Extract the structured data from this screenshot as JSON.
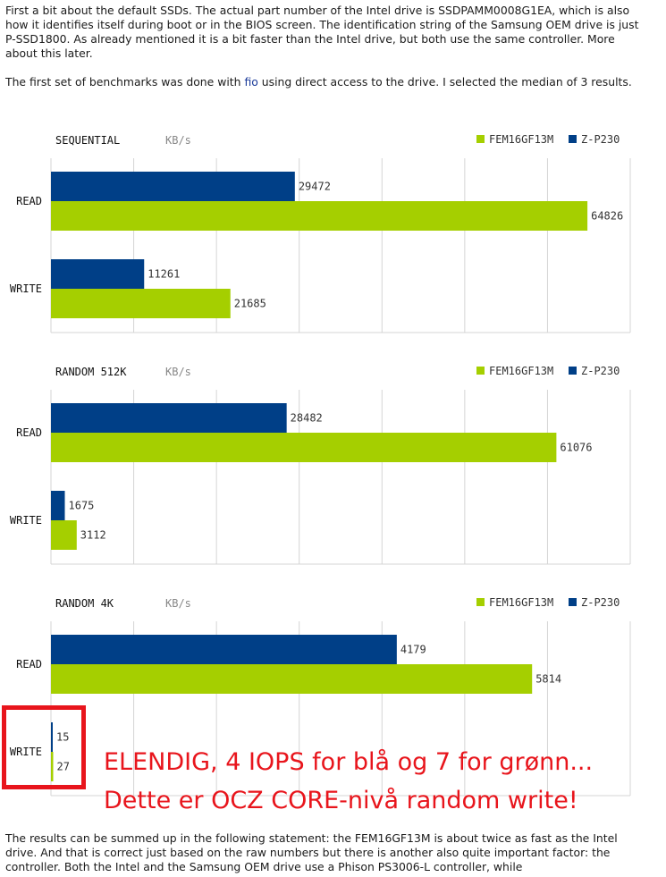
{
  "article": {
    "para1": "First a bit about the default SSDs. The actual part number of the Intel drive is SSDPAMM0008G1EA, which is also how it identifies itself during boot or in the BIOS screen. The identification string of the Samsung OEM drive is just P-SSD1800. As already mentioned it is a bit faster than the Intel drive, but both use the same controller. More about this later.",
    "para2_before": "The first set of benchmarks was done with ",
    "para2_link": "fio",
    "para2_after": " using direct access to the drive. I selected the median of 3 results.",
    "para3": "The results can be summed up in the following statement: the FEM16GF13M is about twice as fast as the Intel drive. And that is correct just based on the raw numbers but there is another also quite important factor: the controller. Both the Intel and the Samsung OEM drive use a Phison PS3006-L controller, while"
  },
  "colors": {
    "green": "#a5cf00",
    "blue": "#003f87",
    "grid": "#d4d4d4",
    "annotation": "#e8151c"
  },
  "annotation": {
    "line1": "ELENDIG, 4 IOPS for blå og 7 for grønn...",
    "line2": "Dette er OCZ CORE-nivå random write!"
  },
  "chart_data": [
    {
      "type": "bar",
      "orientation": "horizontal",
      "title": "SEQUENTIAL",
      "unit": "KB/s",
      "categories": [
        "READ",
        "WRITE"
      ],
      "series": [
        {
          "name": "Z-P230",
          "color": "#003f87",
          "values": [
            29472,
            11261
          ]
        },
        {
          "name": "FEM16GF13M",
          "color": "#a5cf00",
          "values": [
            64826,
            21685
          ]
        }
      ],
      "xlim": [
        0,
        70000
      ],
      "grid": true,
      "legend": "top-right"
    },
    {
      "type": "bar",
      "orientation": "horizontal",
      "title": "RANDOM 512K",
      "unit": "KB/s",
      "categories": [
        "READ",
        "WRITE"
      ],
      "series": [
        {
          "name": "Z-P230",
          "color": "#003f87",
          "values": [
            28482,
            1675
          ]
        },
        {
          "name": "FEM16GF13M",
          "color": "#a5cf00",
          "values": [
            61076,
            3112
          ]
        }
      ],
      "xlim": [
        0,
        70000
      ],
      "grid": true,
      "legend": "top-right"
    },
    {
      "type": "bar",
      "orientation": "horizontal",
      "title": "RANDOM 4K",
      "unit": "KB/s",
      "categories": [
        "READ",
        "WRITE"
      ],
      "series": [
        {
          "name": "Z-P230",
          "color": "#003f87",
          "values": [
            4179,
            15
          ]
        },
        {
          "name": "FEM16GF13M",
          "color": "#a5cf00",
          "values": [
            5814,
            27
          ]
        }
      ],
      "xlim": [
        0,
        7000
      ],
      "grid": true,
      "legend": "top-right"
    }
  ]
}
